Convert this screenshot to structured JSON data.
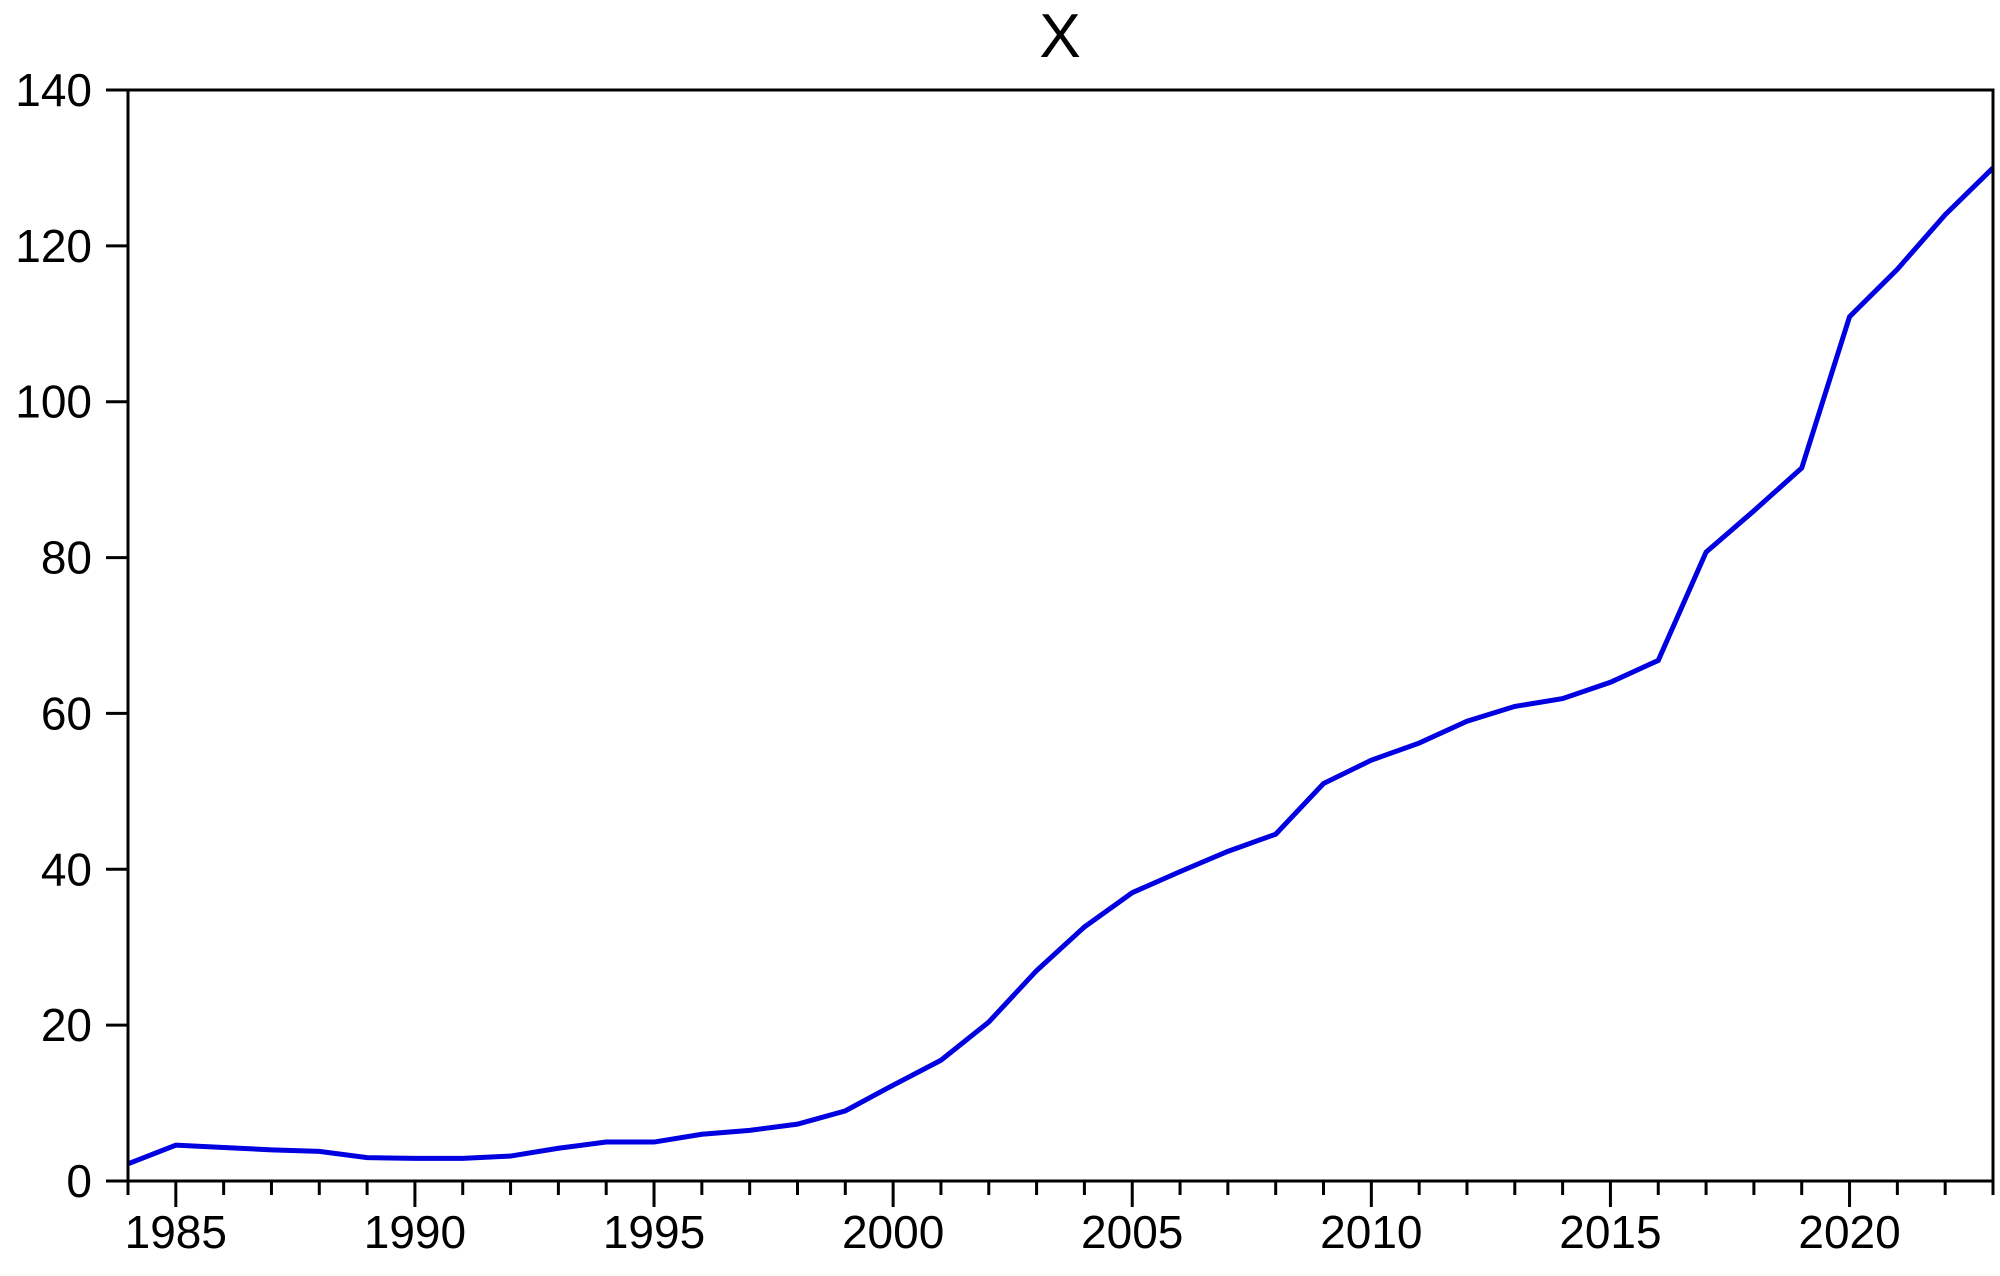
{
  "page": {
    "background_color": "#ffffff",
    "text_color": "#000000"
  },
  "chart_data": {
    "type": "line",
    "title": "X",
    "xlabel": "",
    "ylabel": "",
    "grid": false,
    "legend": "none",
    "frame": true,
    "axis_color": "#000000",
    "line_color": "#0000e0",
    "xlim": [
      1984,
      2023
    ],
    "ylim": [
      0,
      140
    ],
    "y_tick_step": 20,
    "y_tick_values": [
      0,
      20,
      40,
      60,
      80,
      100,
      120,
      140
    ],
    "y_tick_labels": [
      "0",
      "20",
      "40",
      "60",
      "80",
      "100",
      "120",
      "140"
    ],
    "x_minor_tick_every": 1,
    "x_major_tick_every": 5,
    "x_labeled_ticks": [
      1985,
      1990,
      1995,
      2000,
      2005,
      2010,
      2015,
      2020
    ],
    "x_tick_labels": [
      "1985",
      "1990",
      "1995",
      "2000",
      "2005",
      "2010",
      "2015",
      "2020"
    ],
    "series": [
      {
        "name": "X",
        "color": "#0000e0",
        "x": [
          1984,
          1985,
          1986,
          1987,
          1988,
          1989,
          1990,
          1991,
          1992,
          1993,
          1994,
          1995,
          1996,
          1997,
          1998,
          1999,
          2000,
          2001,
          2002,
          2003,
          2004,
          2005,
          2006,
          2007,
          2008,
          2009,
          2010,
          2011,
          2012,
          2013,
          2014,
          2015,
          2016,
          2017,
          2018,
          2019,
          2020,
          2021,
          2022,
          2023
        ],
        "values": [
          2.2,
          4.6,
          4.3,
          4.0,
          3.8,
          3.0,
          2.9,
          2.9,
          3.2,
          4.2,
          5.0,
          5.0,
          6.0,
          6.5,
          7.3,
          9.0,
          12.3,
          15.5,
          20.4,
          27.0,
          32.6,
          37.0,
          39.7,
          42.3,
          44.5,
          51.0,
          54.0,
          56.2,
          59.0,
          60.9,
          61.9,
          64.0,
          66.8,
          80.7,
          86.0,
          91.5,
          110.9,
          117.0,
          124.0,
          130.0
        ]
      }
    ]
  }
}
